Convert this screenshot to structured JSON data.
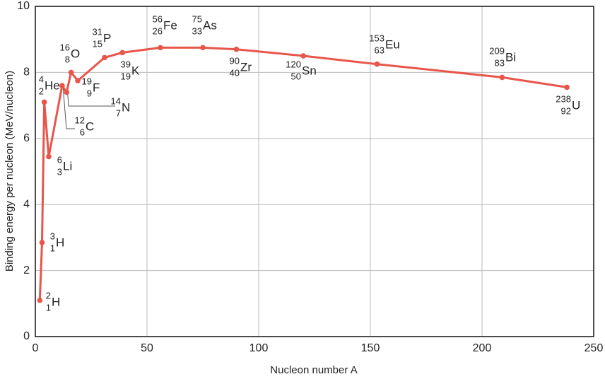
{
  "chart_data": {
    "type": "line",
    "xlabel": "Nucleon number A",
    "ylabel": "Binding energy per nucleon (MeV/nucleon)",
    "x": [
      2,
      3,
      4,
      6,
      12,
      14,
      16,
      19,
      31,
      39,
      56,
      75,
      90,
      120,
      153,
      209,
      238
    ],
    "series": [
      {
        "color": "#e8554a",
        "values": [
          1.1,
          2.85,
          7.1,
          5.45,
          7.6,
          7.4,
          8.0,
          7.75,
          8.45,
          8.6,
          8.75,
          8.75,
          8.7,
          8.5,
          8.25,
          7.85,
          7.55
        ]
      }
    ],
    "atomic_numbers": [
      1,
      1,
      2,
      3,
      6,
      7,
      8,
      9,
      15,
      19,
      26,
      33,
      40,
      50,
      63,
      83,
      92
    ],
    "symbols": [
      "H",
      "H",
      "He",
      "Li",
      "C",
      "N",
      "O",
      "F",
      "P",
      "K",
      "Fe",
      "As",
      "Zr",
      "Sn",
      "Eu",
      "Bi",
      "U"
    ],
    "xlim": [
      0,
      250
    ],
    "xticks": [
      0,
      50,
      100,
      150,
      200,
      250
    ],
    "ylim": [
      0,
      10
    ],
    "yticks": [
      0,
      2,
      4,
      6,
      8,
      10
    ],
    "grid": true
  }
}
